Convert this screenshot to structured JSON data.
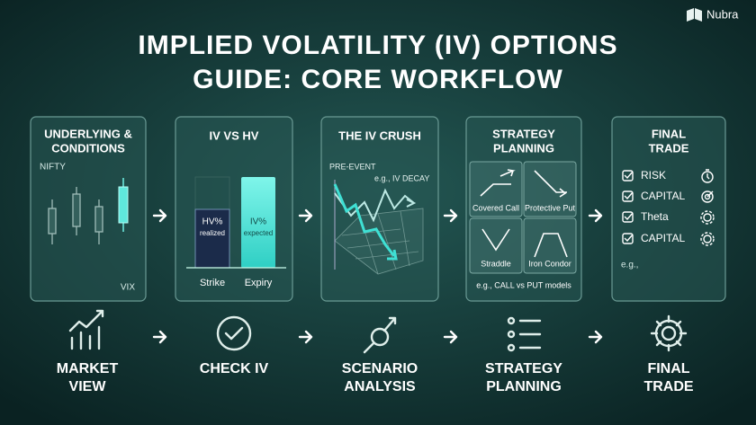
{
  "brand": "Nubra",
  "title": {
    "lines": [
      "IMPLIED VOLATILITY (IV) OPTIONS",
      "GUIDE: CORE WORKFLOW"
    ]
  },
  "cards": [
    {
      "title": [
        "UNDERLYING &",
        "CONDITIONS"
      ],
      "top_label": "NIFTY",
      "bottom_label": "VIX"
    },
    {
      "title": [
        "IV VS HV"
      ],
      "bars": [
        {
          "name": "HV%",
          "sub": "realized"
        },
        {
          "name": "IV%",
          "sub": "expected"
        }
      ],
      "axis": [
        "Strike",
        "Expiry"
      ]
    },
    {
      "title": [
        "THE IV CRUSH"
      ],
      "labels": [
        "PRE-EVENT",
        "e.g., IV DECAY"
      ]
    },
    {
      "title": [
        "STRATEGY",
        "PLANNING"
      ],
      "tiles": [
        "Covered Call",
        "Protective Put",
        "Straddle",
        "Iron Condor"
      ],
      "note": "e.g., CALL vs PUT models"
    },
    {
      "title": [
        "FINAL",
        "TRADE"
      ],
      "checklist": [
        "RISK",
        "CAPITAL",
        "Theta",
        "CAPITAL"
      ],
      "note": "e.g.,"
    }
  ],
  "steps": [
    {
      "lines": [
        "MARKET",
        "VIEW"
      ]
    },
    {
      "lines": [
        "CHECK IV"
      ]
    },
    {
      "lines": [
        "SCENARIO",
        "ANALYSIS"
      ]
    },
    {
      "lines": [
        "STRATEGY",
        "PLANNING"
      ]
    },
    {
      "lines": [
        "FINAL",
        "TRADE"
      ]
    }
  ]
}
